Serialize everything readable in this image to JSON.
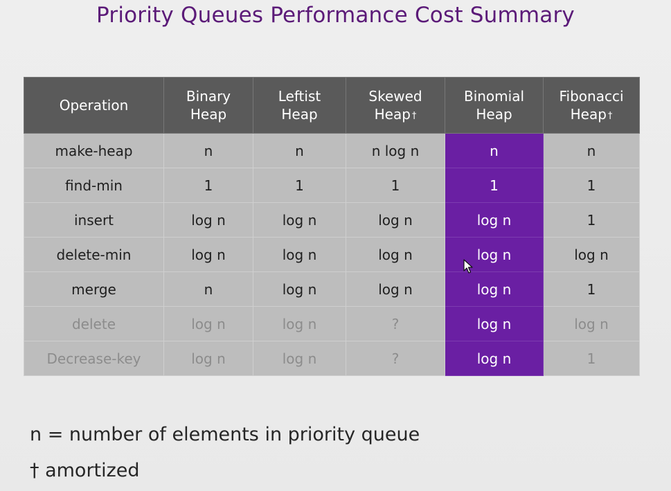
{
  "title": "Priority Queues Performance Cost Summary",
  "table": {
    "header": {
      "operation": "Operation",
      "binary": [
        "Binary",
        "Heap"
      ],
      "leftist": [
        "Leftist",
        "Heap"
      ],
      "skewed": [
        "Skewed",
        "Heap"
      ],
      "binomial": [
        "Binomial",
        "Heap"
      ],
      "fibonacci": [
        "Fibonacci",
        "Heap"
      ],
      "dagger": "†"
    },
    "rows": [
      {
        "op": "make-heap",
        "binary": "n",
        "leftist": "n",
        "skewed": "n log n",
        "binomial": "n",
        "fibonacci": "n"
      },
      {
        "op": "find-min",
        "binary": "1",
        "leftist": "1",
        "skewed": "1",
        "binomial": "1",
        "fibonacci": "1"
      },
      {
        "op": "insert",
        "binary": "log n",
        "leftist": "log n",
        "skewed": "log n",
        "binomial": "log n",
        "fibonacci": "1"
      },
      {
        "op": "delete-min",
        "binary": "log n",
        "leftist": "log n",
        "skewed": "log n",
        "binomial": "log n",
        "fibonacci": "log n"
      },
      {
        "op": "merge",
        "binary": "n",
        "leftist": "log n",
        "skewed": "log n",
        "binomial": "log n",
        "fibonacci": "1"
      },
      {
        "op": "delete",
        "binary": "log n",
        "leftist": "log n",
        "skewed": "?",
        "binomial": "log n",
        "fibonacci": "log n"
      },
      {
        "op": "Decrease-key",
        "binary": "log n",
        "leftist": "log n",
        "skewed": "?",
        "binomial": "log n",
        "fibonacci": "1"
      }
    ]
  },
  "notes": {
    "n_definition": "n = number of elements in priority queue",
    "amortized": "† amortized"
  },
  "colors": {
    "title": "#5b1a78",
    "header_bg": "#5a5a5a",
    "cell_bg": "#bdbdbd",
    "highlight": "#6a1fa3"
  }
}
